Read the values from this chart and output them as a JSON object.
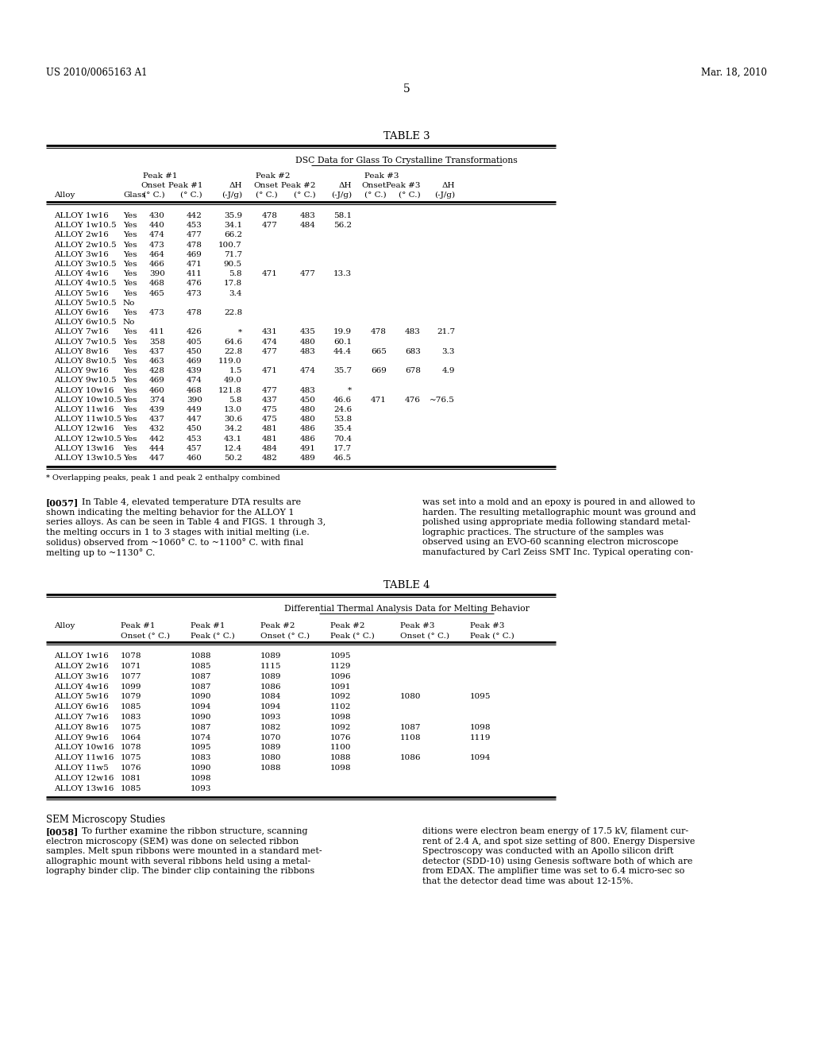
{
  "header_left": "US 2010/0065163 A1",
  "header_right": "Mar. 18, 2010",
  "page_number": "5",
  "table3_title": "TABLE 3",
  "table3_subtitle": "DSC Data for Glass To Crystalline Transformations",
  "table3_data": [
    [
      "ALLOY 1w16",
      "Yes",
      "430",
      "442",
      "35.9",
      "478",
      "483",
      "58.1",
      "",
      "",
      ""
    ],
    [
      "ALLOY 1w10.5",
      "Yes",
      "440",
      "453",
      "34.1",
      "477",
      "484",
      "56.2",
      "",
      "",
      ""
    ],
    [
      "ALLOY 2w16",
      "Yes",
      "474",
      "477",
      "66.2",
      "",
      "",
      "",
      "",
      "",
      ""
    ],
    [
      "ALLOY 2w10.5",
      "Yes",
      "473",
      "478",
      "100.7",
      "",
      "",
      "",
      "",
      "",
      ""
    ],
    [
      "ALLOY 3w16",
      "Yes",
      "464",
      "469",
      "71.7",
      "",
      "",
      "",
      "",
      "",
      ""
    ],
    [
      "ALLOY 3w10.5",
      "Yes",
      "466",
      "471",
      "90.5",
      "",
      "",
      "",
      "",
      "",
      ""
    ],
    [
      "ALLOY 4w16",
      "Yes",
      "390",
      "411",
      "5.8",
      "471",
      "477",
      "13.3",
      "",
      "",
      ""
    ],
    [
      "ALLOY 4w10.5",
      "Yes",
      "468",
      "476",
      "17.8",
      "",
      "",
      "",
      "",
      "",
      ""
    ],
    [
      "ALLOY 5w16",
      "Yes",
      "465",
      "473",
      "3.4",
      "",
      "",
      "",
      "",
      "",
      ""
    ],
    [
      "ALLOY 5w10.5",
      "No",
      "",
      "",
      "",
      "",
      "",
      "",
      "",
      "",
      ""
    ],
    [
      "ALLOY 6w16",
      "Yes",
      "473",
      "478",
      "22.8",
      "",
      "",
      "",
      "",
      "",
      ""
    ],
    [
      "ALLOY 6w10.5",
      "No",
      "",
      "",
      "",
      "",
      "",
      "",
      "",
      "",
      ""
    ],
    [
      "ALLOY 7w16",
      "Yes",
      "411",
      "426",
      "*",
      "431",
      "435",
      "19.9",
      "478",
      "483",
      "21.7"
    ],
    [
      "ALLOY 7w10.5",
      "Yes",
      "358",
      "405",
      "64.6",
      "474",
      "480",
      "60.1",
      "",
      "",
      ""
    ],
    [
      "ALLOY 8w16",
      "Yes",
      "437",
      "450",
      "22.8",
      "477",
      "483",
      "44.4",
      "665",
      "683",
      "3.3"
    ],
    [
      "ALLOY 8w10.5",
      "Yes",
      "463",
      "469",
      "119.0",
      "",
      "",
      "",
      "",
      "",
      ""
    ],
    [
      "ALLOY 9w16",
      "Yes",
      "428",
      "439",
      "1.5",
      "471",
      "474",
      "35.7",
      "669",
      "678",
      "4.9"
    ],
    [
      "ALLOY 9w10.5",
      "Yes",
      "469",
      "474",
      "49.0",
      "",
      "",
      "",
      "",
      "",
      ""
    ],
    [
      "ALLOY 10w16",
      "Yes",
      "460",
      "468",
      "121.8",
      "477",
      "483",
      "*",
      "",
      "",
      ""
    ],
    [
      "ALLOY 10w10.5",
      "Yes",
      "374",
      "390",
      "5.8",
      "437",
      "450",
      "46.6",
      "471",
      "476",
      "~76.5"
    ],
    [
      "ALLOY 11w16",
      "Yes",
      "439",
      "449",
      "13.0",
      "475",
      "480",
      "24.6",
      "",
      "",
      ""
    ],
    [
      "ALLOY 11w10.5",
      "Yes",
      "437",
      "447",
      "30.6",
      "475",
      "480",
      "53.8",
      "",
      "",
      ""
    ],
    [
      "ALLOY 12w16",
      "Yes",
      "432",
      "450",
      "34.2",
      "481",
      "486",
      "35.4",
      "",
      "",
      ""
    ],
    [
      "ALLOY 12w10.5",
      "Yes",
      "442",
      "453",
      "43.1",
      "481",
      "486",
      "70.4",
      "",
      "",
      ""
    ],
    [
      "ALLOY 13w16",
      "Yes",
      "444",
      "457",
      "12.4",
      "484",
      "491",
      "17.7",
      "",
      "",
      ""
    ],
    [
      "ALLOY 13w10.5",
      "Yes",
      "447",
      "460",
      "50.2",
      "482",
      "489",
      "46.5",
      "",
      "",
      ""
    ]
  ],
  "table3_footnote": "* Overlapping peaks, peak 1 and peak 2 enthalpy combined",
  "table4_title": "TABLE 4",
  "table4_subtitle": "Differential Thermal Analysis Data for Melting Behavior",
  "table4_data": [
    [
      "ALLOY 1w16",
      "1078",
      "1088",
      "1089",
      "1095",
      "",
      ""
    ],
    [
      "ALLOY 2w16",
      "1071",
      "1085",
      "1115",
      "1129",
      "",
      ""
    ],
    [
      "ALLOY 3w16",
      "1077",
      "1087",
      "1089",
      "1096",
      "",
      ""
    ],
    [
      "ALLOY 4w16",
      "1099",
      "1087",
      "1086",
      "1091",
      "",
      ""
    ],
    [
      "ALLOY 5w16",
      "1079",
      "1090",
      "1084",
      "1092",
      "1080",
      "1095"
    ],
    [
      "ALLOY 6w16",
      "1085",
      "1094",
      "1094",
      "1102",
      "",
      ""
    ],
    [
      "ALLOY 7w16",
      "1083",
      "1090",
      "1093",
      "1098",
      "",
      ""
    ],
    [
      "ALLOY 8w16",
      "1075",
      "1087",
      "1082",
      "1092",
      "1087",
      "1098"
    ],
    [
      "ALLOY 9w16",
      "1064",
      "1074",
      "1070",
      "1076",
      "1108",
      "1119"
    ],
    [
      "ALLOY 10w16",
      "1078",
      "1095",
      "1089",
      "1100",
      "",
      ""
    ],
    [
      "ALLOY 11w16",
      "1075",
      "1083",
      "1080",
      "1088",
      "1086",
      "1094"
    ],
    [
      "ALLOY 11w5",
      "1076",
      "1090",
      "1088",
      "1098",
      "",
      ""
    ],
    [
      "ALLOY 12w16",
      "1081",
      "1098",
      "",
      "",
      "",
      ""
    ],
    [
      "ALLOY 13w16",
      "1085",
      "1093",
      "",
      "",
      "",
      ""
    ]
  ],
  "para_left_lines": [
    "[0057]   In Table 4, elevated temperature DTA results are",
    "shown indicating the melting behavior for the ALLOY 1",
    "series alloys. As can be seen in Table 4 and FIGS. 1 through 3,",
    "the melting occurs in 1 to 3 stages with initial melting (i.e.",
    "solidus) observed from ~1060° C. to ~1100° C. with final",
    "melting up to ~1130° C."
  ],
  "para_right_lines": [
    "was set into a mold and an epoxy is poured in and allowed to",
    "harden. The resulting metallographic mount was ground and",
    "polished using appropriate media following standard metal-",
    "lographic practices. The structure of the samples was",
    "observed using an EVO-60 scanning electron microscope",
    "manufactured by Carl Zeiss SMT Inc. Typical operating con-"
  ],
  "sem_heading": "SEM Microscopy Studies",
  "sem_left_lines": [
    "[0058]   To further examine the ribbon structure, scanning",
    "electron microscopy (SEM) was done on selected ribbon",
    "samples. Melt spun ribbons were mounted in a standard met-",
    "allographic mount with several ribbons held using a metal-",
    "lography binder clip. The binder clip containing the ribbons"
  ],
  "sem_right_lines": [
    "ditions were electron beam energy of 17.5 kV, filament cur-",
    "rent of 2.4 A, and spot size setting of 800. Energy Dispersive",
    "Spectroscopy was conducted with an Apollo silicon drift",
    "detector (SDD-10) using Genesis software both of which are",
    "from EDAX. The amplifier time was set to 6.4 micro-sec so",
    "that the detector dead time was about 12-15%."
  ]
}
